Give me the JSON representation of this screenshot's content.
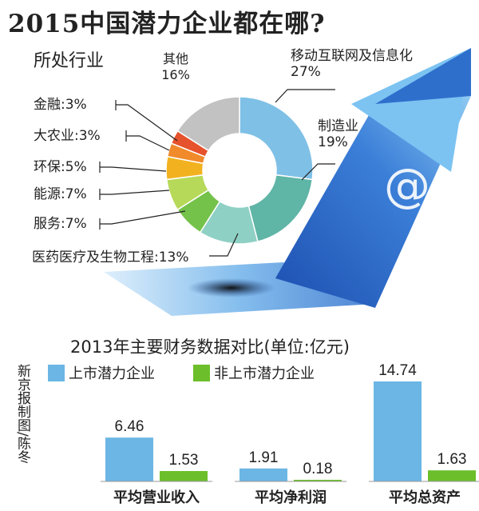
{
  "title": "2015中国潜力企业都在哪?",
  "credit": "新京报制图/陈冬",
  "colors": {
    "blue": "#6bb6e4",
    "green": "#6cbf2a",
    "arrow": "#2f6fcc",
    "arrow_light": "#a9d8f5"
  },
  "chart_data": [
    {
      "type": "pie",
      "title": "所处行业",
      "slices": [
        {
          "label": "移动互联网及信息化",
          "display": "移动互联网及信息化 27%",
          "value": 27,
          "color": "#7fc0e6"
        },
        {
          "label": "制造业",
          "display": "制造业 19%",
          "value": 19,
          "color": "#5fb5a6"
        },
        {
          "label": "医药医疗及生物工程",
          "display": "医药医疗及生物工程:13%",
          "value": 13,
          "color": "#8fd0c4"
        },
        {
          "label": "服务",
          "display": "服务:7%",
          "value": 7,
          "color": "#74c24a"
        },
        {
          "label": "能源",
          "display": "能源:7%",
          "value": 7,
          "color": "#b7d95a"
        },
        {
          "label": "环保",
          "display": "环保:5%",
          "value": 5,
          "color": "#f2b21f"
        },
        {
          "label": "大农业",
          "display": "大农业:3%",
          "value": 3,
          "color": "#f08a2a"
        },
        {
          "label": "金融",
          "display": "金融:3%",
          "value": 3,
          "color": "#e5522c"
        },
        {
          "label": "其他",
          "display": "其他 16%",
          "value": 16,
          "color": "#c2c2c2"
        }
      ]
    },
    {
      "type": "bar",
      "title": "2013年主要财务数据对比(单位:亿元)",
      "categories": [
        "平均营业收入",
        "平均净利润",
        "平均总资产"
      ],
      "series": [
        {
          "name": "上市潜力企业",
          "values": [
            6.46,
            1.91,
            14.74
          ],
          "labels": [
            "6.46",
            "1.91",
            "14.74"
          ],
          "color": "#6bb6e4"
        },
        {
          "name": "非上市潜力企业",
          "values": [
            1.53,
            0.18,
            1.63
          ],
          "labels": [
            "1.53",
            "0.18",
            "1.63"
          ],
          "color": "#6cbf2a"
        }
      ],
      "ylim": [
        0,
        14.74
      ]
    }
  ]
}
